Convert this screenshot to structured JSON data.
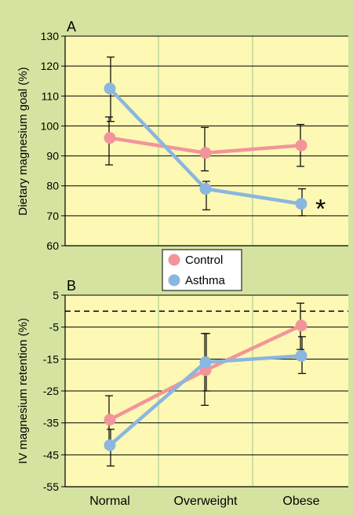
{
  "colors": {
    "background": "#d4e4a0",
    "plot_area": "#fdf8b4",
    "control": "#f2959a",
    "asthma": "#8ab7df",
    "vertical_gridlines": "#bcd79a",
    "axis": "#000000"
  },
  "legend": {
    "items": [
      {
        "label": "Control",
        "color": "#f2959a"
      },
      {
        "label": "Asthma",
        "color": "#8ab7df"
      }
    ]
  },
  "chart_data": [
    {
      "panel": "A",
      "type": "line",
      "categories": [
        "Normal",
        "Overweight",
        "Obese"
      ],
      "ylabel": "Dietary magnesium goal (%)",
      "ylim": [
        60,
        130
      ],
      "yticks": [
        60,
        70,
        80,
        90,
        100,
        110,
        120,
        130
      ],
      "grid": true,
      "series": [
        {
          "name": "Control",
          "values": [
            96,
            91,
            93.5
          ],
          "error_low": [
            87,
            85,
            86.5
          ],
          "error_high": [
            103,
            99.5,
            100.5
          ]
        },
        {
          "name": "Asthma",
          "values": [
            112.5,
            79,
            74
          ],
          "error_low": [
            101.5,
            72,
            70
          ],
          "error_high": [
            123,
            81.5,
            79
          ]
        }
      ],
      "annotations": [
        {
          "text": "*",
          "category": "Obese",
          "series": "Asthma"
        }
      ]
    },
    {
      "panel": "B",
      "type": "line",
      "categories": [
        "Normal",
        "Overweight",
        "Obese"
      ],
      "ylabel": "IV magnesium retention (%)",
      "ylim": [
        -55,
        5
      ],
      "yticks": [
        -55,
        -45,
        -35,
        -25,
        -15,
        -5,
        5
      ],
      "reference_line": 0,
      "grid": true,
      "series": [
        {
          "name": "Control",
          "values": [
            -34,
            -18.5,
            -4.5
          ],
          "error_low": [
            -41,
            -29.5,
            -12
          ],
          "error_high": [
            -26.5,
            -7,
            2.5
          ]
        },
        {
          "name": "Asthma",
          "values": [
            -42,
            -16,
            -14
          ],
          "error_low": [
            -48.5,
            -25,
            -19.5
          ],
          "error_high": [
            -37,
            -7,
            -8
          ]
        }
      ]
    }
  ]
}
